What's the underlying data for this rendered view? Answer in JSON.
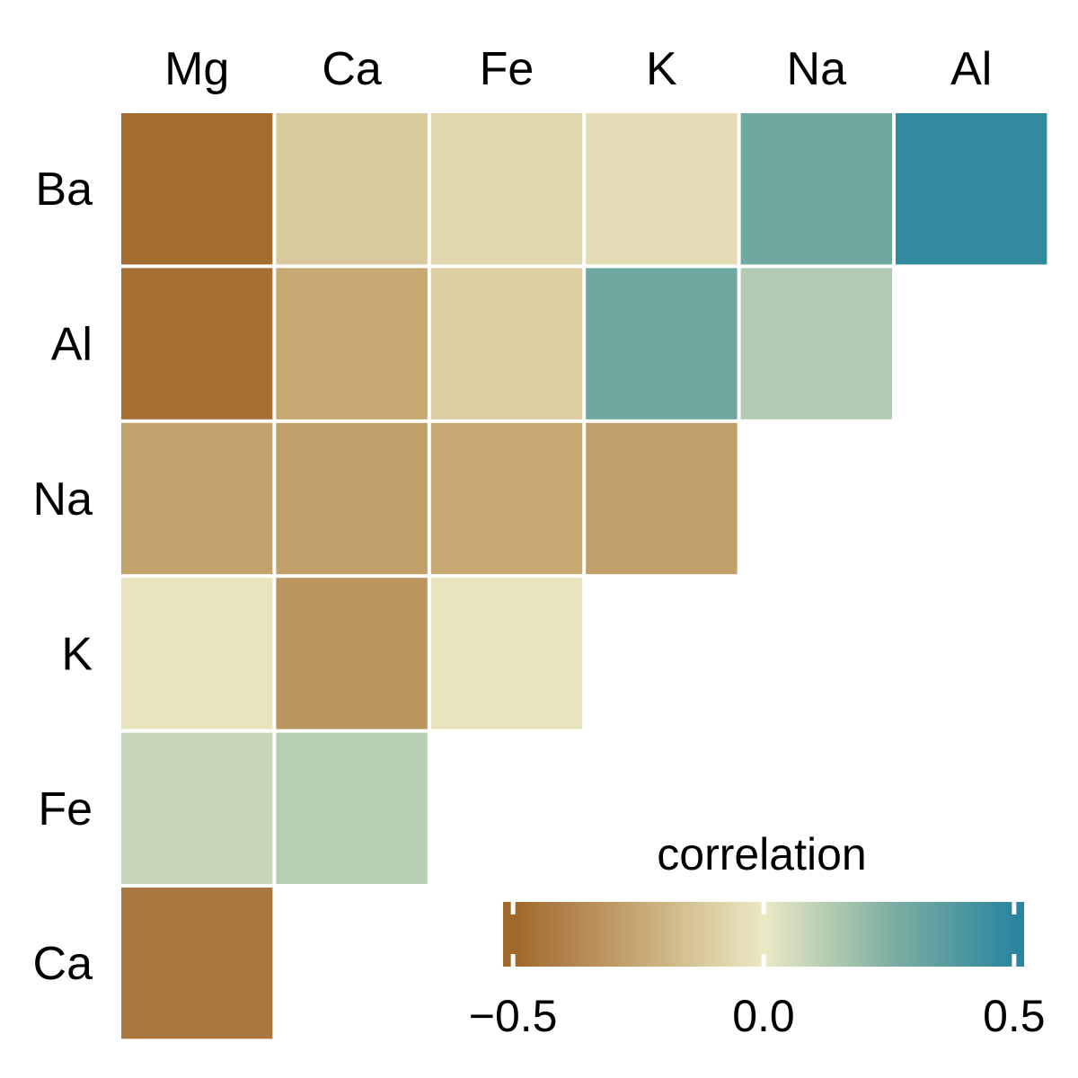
{
  "chart_data": {
    "type": "heatmap",
    "title": "",
    "x_categories": [
      "Mg",
      "Ca",
      "Fe",
      "K",
      "Na",
      "Al"
    ],
    "y_categories": [
      "Ba",
      "Al",
      "Na",
      "K",
      "Fe",
      "Ca"
    ],
    "values": [
      [
        -0.48,
        -0.12,
        -0.07,
        -0.05,
        0.3,
        0.48
      ],
      [
        -0.47,
        -0.25,
        -0.1,
        0.3,
        0.13,
        null
      ],
      [
        -0.27,
        -0.28,
        -0.25,
        -0.28,
        null,
        null
      ],
      [
        -0.02,
        -0.32,
        -0.02,
        null,
        null,
        null
      ],
      [
        0.08,
        0.12,
        null,
        null,
        null,
        null
      ],
      [
        -0.43,
        null,
        null,
        null,
        null,
        null
      ]
    ],
    "legend": {
      "title": "correlation",
      "placement": "bottom-right",
      "ticks": [
        -0.5,
        0.0,
        0.5
      ],
      "tick_labels": [
        "−0.5",
        "0.0",
        "0.5"
      ],
      "range": [
        -0.5,
        0.5
      ]
    },
    "color_stops": [
      {
        "value": -0.5,
        "color": "#a0672b"
      },
      {
        "value": -0.25,
        "color": "#c6a873"
      },
      {
        "value": 0.0,
        "color": "#ebe9c4"
      },
      {
        "value": 0.25,
        "color": "#7fb0a2"
      },
      {
        "value": 0.5,
        "color": "#2a869e"
      }
    ]
  }
}
